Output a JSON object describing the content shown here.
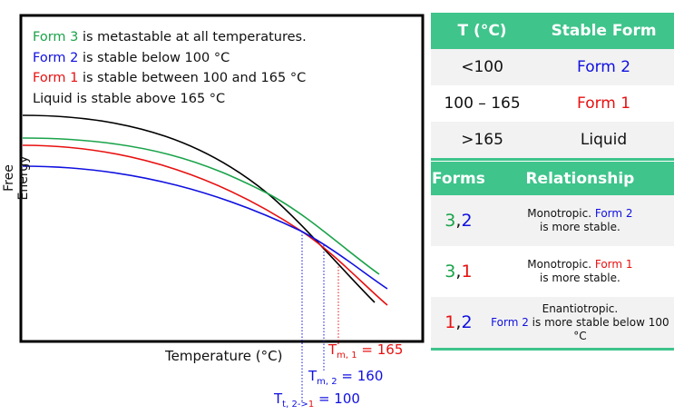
{
  "legend": [
    {
      "form": "Form 3",
      "text": " is metastable at all temperatures.",
      "color": "#1aa34a"
    },
    {
      "form": "Form 2",
      "text": " is stable below 100 °C",
      "color": "#1010e0"
    },
    {
      "form": "Form 1",
      "text": " is stable between 100 and 165 °C",
      "color": "#e81010"
    },
    {
      "form": "",
      "text": "Liquid is stable above 165 °C",
      "color": "#111111"
    }
  ],
  "axes": {
    "xlabel": "Temperature (°C)",
    "ylabel": "Free Energy"
  },
  "annotations": {
    "tm1": {
      "sym": "T",
      "sub": "m, 1",
      "value": " = 165"
    },
    "tm2": {
      "sym": "T",
      "sub": "m, 2",
      "value": " = 160"
    },
    "tt": {
      "sym": "T",
      "sub": "t, 2->",
      "sub2": "1",
      "value": " = 100"
    }
  },
  "stable_table": {
    "headers": [
      "T (°C)",
      "Stable Form"
    ],
    "rows": [
      {
        "t": "<100",
        "form": "Form 2",
        "color": "#1010e0"
      },
      {
        "t": "100 – 165",
        "form": "Form 1",
        "color": "#e81010"
      },
      {
        "t": ">165",
        "form": "Liquid",
        "color": "#111111"
      }
    ]
  },
  "relationship_table": {
    "headers": [
      "Forms",
      "Relationship"
    ],
    "rows": [
      {
        "a": "3",
        "b": "2",
        "ac": "#1aa34a",
        "bc": "#1010e0",
        "pre": "Monotropic. ",
        "form": "Form 2",
        "fc": "#1010e0",
        "post": " is more stable."
      },
      {
        "a": "3",
        "b": "1",
        "ac": "#1aa34a",
        "bc": "#e81010",
        "pre": "Monotropic. ",
        "form": "Form 1",
        "fc": "#e81010",
        "post": " is more stable."
      },
      {
        "a": "1",
        "b": "2",
        "ac": "#e81010",
        "bc": "#1010e0",
        "pre": "Enantiotropic. ",
        "form": "Form 2",
        "fc": "#1010e0",
        "post": " is more stable below 100 °C"
      }
    ]
  },
  "colors": {
    "form3": "#1aa34a",
    "form2": "#1010e0",
    "form1": "#e81010",
    "liquid": "#000000",
    "header": "#3fc48c"
  }
}
